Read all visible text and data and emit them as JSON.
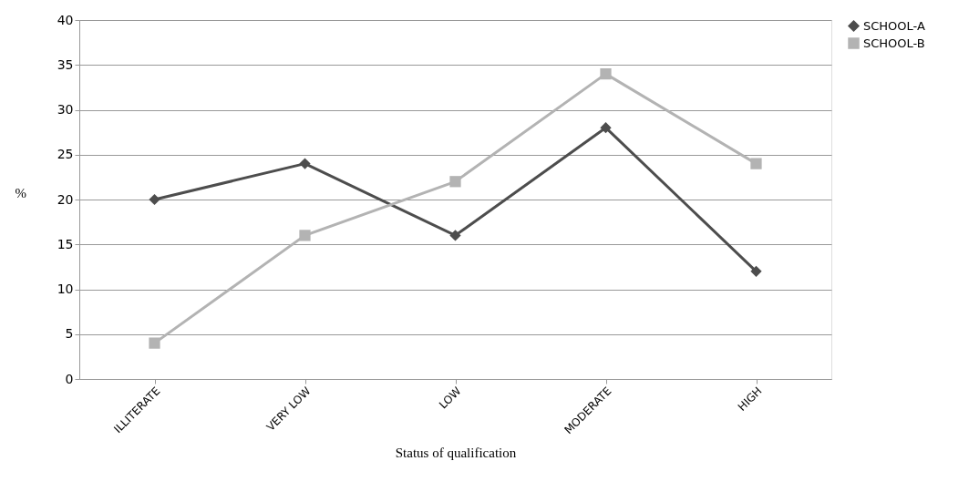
{
  "chart_data": {
    "type": "line",
    "xlabel": "Status of qualification",
    "ylabel": "%",
    "categories": [
      "ILLITERATE",
      "VERY LOW",
      "LOW",
      "MODERATE",
      "HIGH"
    ],
    "series": [
      {
        "name": "SCHOOL-A",
        "color": "#4d4d4d",
        "marker": "diamond",
        "values": [
          20,
          24,
          16,
          28,
          12
        ]
      },
      {
        "name": "SCHOOL-B",
        "color": "#b3b3b3",
        "marker": "square",
        "values": [
          4,
          16,
          22,
          34,
          24
        ]
      }
    ],
    "ylim": [
      0,
      40
    ],
    "yticks": [
      0,
      5,
      10,
      15,
      20,
      25,
      30,
      35,
      40
    ],
    "grid": "y",
    "legend": "right",
    "line_style": "solid"
  }
}
